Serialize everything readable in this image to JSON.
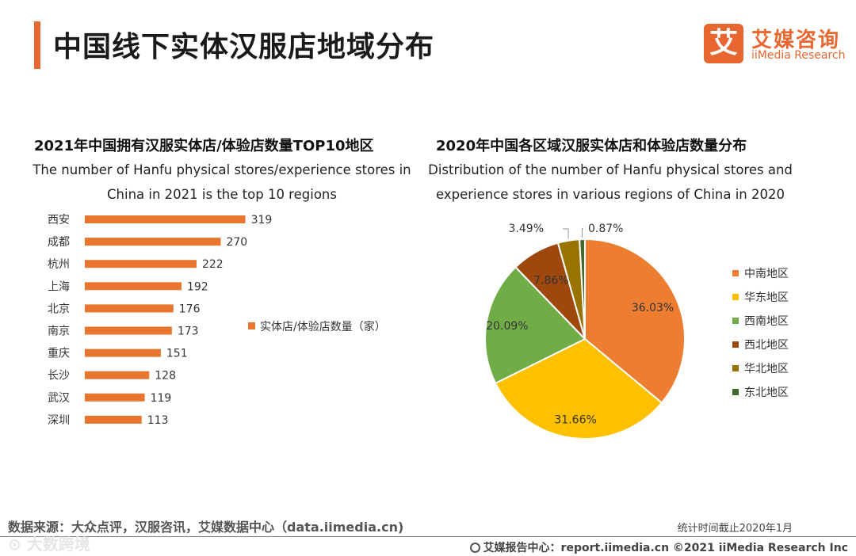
{
  "page": {
    "title": "中国线下实体汉服店地域分布",
    "logo_mark": "艾",
    "logo_cn": "艾媒咨询",
    "logo_en": "iiMedia Research"
  },
  "footer": {
    "source": "数据来源：大众点评，汉服咨讯，艾媒数据中心（data.iimedia.cn)",
    "date_note": "统计时间截止2020年1月",
    "site": "艾媒报告中心：report.iimedia.cn  ©2021  iiMedia Research  Inc",
    "watermark": "⊙ 大数跨境"
  },
  "chart_data": [
    {
      "type": "bar",
      "orientation": "horizontal",
      "title": "2021年中国拥有汉服实体店/体验店数量TOP10地区",
      "subtitle_line1": "The number of Hanfu physical stores/experience stores in",
      "subtitle_line2": "China in 2021 is the top 10 regions",
      "categories": [
        "西安",
        "成都",
        "杭州",
        "上海",
        "北京",
        "南京",
        "重庆",
        "长沙",
        "武汉",
        "深圳"
      ],
      "series": [
        {
          "name": "实体店/体验店数量（家）",
          "values": [
            319,
            270,
            222,
            192,
            176,
            173,
            151,
            128,
            119,
            113
          ]
        }
      ],
      "color": "#E8762F",
      "legend": "right"
    },
    {
      "type": "pie",
      "title": "2020年中国各区域汉服实体店和体验店数量分布",
      "subtitle_line1": "Distribution of the number of Hanfu physical stores and",
      "subtitle_line2": "experience stores in various regions of China in 2020",
      "labels": [
        "中南地区",
        "华东地区",
        "西南地区",
        "西北地区",
        "华北地区",
        "东北地区"
      ],
      "values": [
        36.03,
        31.66,
        20.09,
        7.86,
        3.49,
        0.87
      ],
      "value_labels": [
        "36.03%",
        "31.66%",
        "20.09%",
        "7.86%",
        "3.49%",
        "0.87%"
      ],
      "colors": [
        "#ED7D31",
        "#FFC000",
        "#70AD47",
        "#9E480E",
        "#997300",
        "#43682B"
      ],
      "legend": "right"
    }
  ]
}
